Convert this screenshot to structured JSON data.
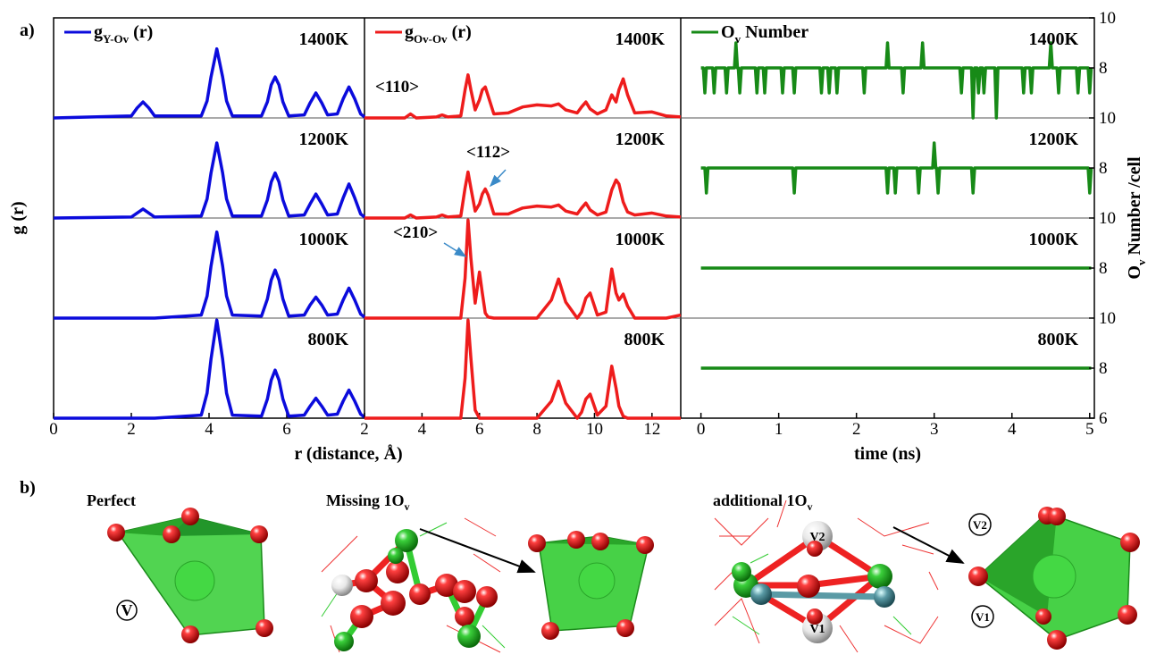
{
  "figure": {
    "panel_a": "a)",
    "panel_b": "b)",
    "x_label_r": "r (distance, Å)"
  },
  "chart_data": [
    {
      "type": "line",
      "legend": {
        "text": "g",
        "sub": "Y-Ov",
        "tail": " (r)"
      },
      "color": "#0b0bdc",
      "y_label": "g (r)",
      "xlim": [
        0,
        8
      ],
      "xticks": [
        0,
        2,
        4,
        6
      ],
      "ylim": [
        0,
        10
      ],
      "x": [
        0,
        2.0,
        2.15,
        2.3,
        2.45,
        2.6,
        3.8,
        3.95,
        4.05,
        4.2,
        4.35,
        4.45,
        4.6,
        5.35,
        5.5,
        5.6,
        5.7,
        5.8,
        5.9,
        6.05,
        6.45,
        6.6,
        6.75,
        6.9,
        7.05,
        7.3,
        7.45,
        7.6,
        7.75,
        7.9,
        8
      ],
      "panels": [
        {
          "label": "1400K",
          "values": [
            0,
            0.2,
            1.0,
            1.6,
            1.0,
            0.2,
            0.2,
            1.7,
            4.1,
            6.9,
            4.1,
            1.7,
            0.2,
            0.2,
            1.6,
            3.3,
            4.1,
            3.3,
            1.6,
            0.2,
            0.3,
            1.5,
            2.5,
            1.5,
            0.3,
            0.4,
            1.9,
            3.1,
            1.9,
            0.4,
            0.1
          ]
        },
        {
          "label": "1200K",
          "values": [
            0,
            0.1,
            0.5,
            0.9,
            0.5,
            0.1,
            0.2,
            1.9,
            4.5,
            7.5,
            4.5,
            1.9,
            0.2,
            0.2,
            1.8,
            3.6,
            4.5,
            3.6,
            1.8,
            0.2,
            0.3,
            1.4,
            2.4,
            1.4,
            0.3,
            0.4,
            2.0,
            3.4,
            2.0,
            0.4,
            0.1
          ]
        },
        {
          "label": "1000K",
          "values": [
            0,
            0,
            0,
            0,
            0,
            0,
            0.3,
            2.2,
            5.2,
            8.6,
            5.2,
            2.2,
            0.3,
            0.2,
            1.9,
            3.8,
            4.8,
            3.8,
            1.9,
            0.2,
            0.3,
            1.3,
            2.1,
            1.3,
            0.3,
            0.4,
            1.8,
            3.0,
            1.8,
            0.4,
            0.1
          ]
        },
        {
          "label": "800K",
          "values": [
            0,
            0,
            0,
            0,
            0,
            0,
            0.3,
            2.5,
            5.9,
            9.8,
            5.9,
            2.5,
            0.3,
            0.2,
            1.9,
            3.8,
            4.8,
            3.8,
            1.9,
            0.2,
            0.3,
            1.2,
            2.0,
            1.2,
            0.3,
            0.4,
            1.7,
            2.8,
            1.7,
            0.4,
            0.1
          ]
        }
      ]
    },
    {
      "type": "line",
      "legend": {
        "text": "g",
        "sub": "Ov-Ov",
        "tail": " (r)"
      },
      "color": "#ee1c1c",
      "xlim": [
        2,
        13
      ],
      "xticks": [
        2,
        4,
        6,
        8,
        10,
        12
      ],
      "ylim": [
        0,
        10
      ],
      "x": [
        2,
        3.4,
        3.6,
        3.8,
        4.5,
        4.7,
        4.9,
        5.35,
        5.5,
        5.6,
        5.7,
        5.85,
        6.0,
        6.1,
        6.2,
        6.3,
        6.5,
        7.0,
        7.5,
        8.0,
        8.5,
        8.75,
        9.0,
        9.4,
        9.55,
        9.7,
        9.85,
        10.1,
        10.4,
        10.6,
        10.75,
        10.85,
        11.0,
        11.15,
        11.4,
        12.0,
        12.5,
        13
      ],
      "panels": [
        {
          "label": "1400K",
          "annotation": "<110>",
          "values": [
            0,
            0,
            0.4,
            0,
            0.1,
            0.3,
            0.1,
            0.2,
            2.8,
            4.3,
            2.8,
            0.8,
            1.8,
            2.8,
            3.1,
            2.2,
            0.4,
            0.5,
            1.1,
            1.3,
            1.2,
            1.4,
            0.8,
            0.5,
            1.1,
            1.6,
            0.9,
            0.4,
            0.8,
            2.3,
            1.6,
            2.8,
            3.9,
            2.3,
            0.5,
            0.6,
            0.2,
            0.1
          ]
        },
        {
          "label": "1200K",
          "annotation": "<112>",
          "values": [
            0,
            0,
            0.3,
            0,
            0.1,
            0.3,
            0.1,
            0.2,
            3.0,
            4.6,
            3.0,
            0.7,
            1.4,
            2.4,
            2.9,
            2.3,
            0.4,
            0.4,
            1.0,
            1.2,
            1.1,
            1.3,
            0.7,
            0.4,
            1.0,
            1.5,
            0.8,
            0.3,
            0.6,
            2.8,
            3.8,
            3.4,
            1.6,
            0.6,
            0.3,
            0.5,
            0.2,
            0.1
          ]
        },
        {
          "label": "1000K",
          "annotation": "<210>",
          "values": [
            0,
            0,
            0,
            0,
            0,
            0,
            0,
            0,
            4.0,
            9.8,
            6.0,
            1.5,
            4.6,
            2.5,
            0.5,
            0.1,
            0,
            0,
            0,
            0,
            1.8,
            3.9,
            1.6,
            0,
            0.6,
            2.0,
            2.5,
            0.3,
            0.6,
            4.9,
            2.5,
            1.8,
            2.4,
            1.2,
            0,
            0,
            0,
            0.3
          ]
        },
        {
          "label": "800K",
          "values": [
            0,
            0,
            0,
            0,
            0,
            0,
            0,
            0,
            4.0,
            9.8,
            6.0,
            0.8,
            0,
            0,
            0,
            0,
            0,
            0,
            0,
            0,
            1.7,
            3.7,
            1.5,
            0,
            0.6,
            1.9,
            2.4,
            0.3,
            1.2,
            5.2,
            3.0,
            1.2,
            0.2,
            0,
            0,
            0,
            0,
            0
          ]
        }
      ]
    },
    {
      "type": "line",
      "legend": {
        "text": "O",
        "sub": "v",
        "tail": " Number"
      },
      "color": "#178a17",
      "x_label": "time (ns)",
      "y_label": {
        "text": "O",
        "sub": "v",
        "tail": " Number /cell"
      },
      "xlim": [
        -0.26,
        5.06
      ],
      "xticks": [
        0,
        1,
        2,
        3,
        4,
        5
      ],
      "ylim": [
        6,
        10
      ],
      "yticks": [
        6,
        8,
        10
      ],
      "panels": [
        {
          "label": "1400K",
          "x": [
            0,
            0.03,
            0.05,
            0.07,
            0.15,
            0.17,
            0.19,
            0.31,
            0.33,
            0.35,
            0.43,
            0.45,
            0.47,
            0.48,
            0.5,
            0.52,
            0.7,
            0.72,
            0.74,
            0.8,
            0.82,
            0.84,
            1.03,
            1.05,
            1.07,
            1.18,
            1.2,
            1.22,
            1.53,
            1.55,
            1.57,
            1.63,
            1.65,
            1.67,
            1.73,
            1.75,
            1.77,
            2.08,
            2.1,
            2.12,
            2.38,
            2.4,
            2.42,
            2.58,
            2.6,
            2.62,
            2.83,
            2.85,
            2.87,
            3.33,
            3.35,
            3.37,
            3.48,
            3.5,
            3.52,
            3.55,
            3.57,
            3.59,
            3.62,
            3.64,
            3.66,
            3.78,
            3.8,
            3.82,
            4.13,
            4.15,
            4.17,
            4.23,
            4.25,
            4.27,
            4.48,
            4.5,
            4.52,
            4.58,
            4.6,
            4.62,
            4.83,
            4.85,
            4.87,
            4.98,
            5.0,
            5.02
          ],
          "values": [
            8,
            8,
            7,
            8,
            8,
            7,
            8,
            8,
            7,
            8,
            8,
            9,
            8,
            8,
            7,
            8,
            8,
            7,
            8,
            8,
            7,
            8,
            8,
            7,
            8,
            8,
            7,
            8,
            8,
            7,
            8,
            8,
            7,
            8,
            8,
            7,
            8,
            8,
            7,
            8,
            8,
            9,
            8,
            8,
            7,
            8,
            8,
            9,
            8,
            8,
            7,
            8,
            8,
            6,
            8,
            8,
            7,
            8,
            8,
            7,
            8,
            8,
            6,
            8,
            8,
            7,
            8,
            8,
            7,
            8,
            8,
            9,
            8,
            8,
            7,
            8,
            8,
            7,
            8,
            8,
            7,
            8
          ]
        },
        {
          "label": "1200K",
          "x": [
            0,
            0.05,
            0.07,
            0.09,
            1.18,
            1.2,
            1.22,
            2.38,
            2.4,
            2.42,
            2.48,
            2.5,
            2.52,
            2.78,
            2.8,
            2.82,
            2.98,
            3.0,
            3.02,
            3.03,
            3.05,
            3.07,
            3.48,
            3.5,
            3.52,
            4.98,
            5.0,
            5.02
          ],
          "values": [
            8,
            8,
            7,
            8,
            8,
            7,
            8,
            8,
            7,
            8,
            8,
            7,
            8,
            8,
            7,
            8,
            8,
            9,
            8,
            8,
            7,
            8,
            8,
            7,
            8,
            8,
            7,
            8
          ]
        },
        {
          "label": "1000K",
          "x": [
            0,
            5.02
          ],
          "values": [
            8,
            8
          ]
        },
        {
          "label": "800K",
          "x": [
            0,
            5.02
          ],
          "values": [
            8,
            8
          ]
        }
      ]
    }
  ],
  "panel_b": {
    "perfect": "Perfect",
    "perfect_site": "V",
    "missing": {
      "text": "Missing 1O",
      "sub": "v"
    },
    "additional": {
      "text": "additional 1O",
      "sub": "v"
    },
    "cluster_sites": [
      "V2",
      "V1"
    ],
    "polyhedron_sites": [
      "V2",
      "V1"
    ]
  }
}
